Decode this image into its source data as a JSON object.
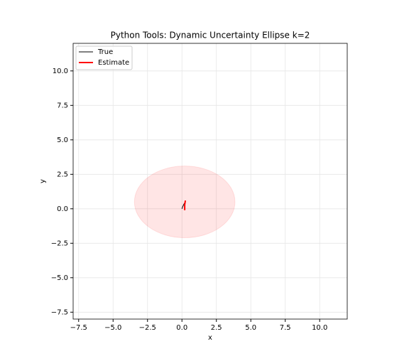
{
  "chart_data": {
    "type": "line",
    "title": "Python Tools: Dynamic Uncertainty Ellipse  k=2",
    "x_label": "x",
    "y_label": "y",
    "xlim": [
      -7.9,
      12.0
    ],
    "ylim": [
      -8.0,
      12.0
    ],
    "xticks": [
      {
        "value": -7.5,
        "label": "−7.5"
      },
      {
        "value": -5,
        "label": "−5.0"
      },
      {
        "value": -2.5,
        "label": "−2.5"
      },
      {
        "value": 0,
        "label": "0.0"
      },
      2.5,
      {
        "value": 5,
        "label": "5.0"
      },
      7.5,
      {
        "value": 10,
        "label": "10.0"
      }
    ],
    "yticks": [
      {
        "value": -7.5,
        "label": "−7.5"
      },
      {
        "value": -5,
        "label": "−5.0"
      },
      {
        "value": -2.5,
        "label": "−2.5"
      },
      {
        "value": 0,
        "label": "0.0"
      },
      2.5,
      {
        "value": 5,
        "label": "5.0"
      },
      7.5,
      {
        "value": 10,
        "label": "10.0"
      }
    ],
    "grid": true,
    "legend": "upper left",
    "series": [
      {
        "name": "True",
        "color": "#000000",
        "x": [
          0,
          0.05,
          0.15,
          0.25
        ],
        "values": [
          0,
          0.15,
          0.35,
          0.5
        ]
      },
      {
        "name": "Estimate",
        "color": "#ff0000",
        "x": [
          0.2,
          0.2,
          0.25
        ],
        "values": [
          -0.1,
          0.3,
          0.6
        ]
      }
    ],
    "ellipse": {
      "x": 0.2,
      "y": 0.5,
      "width": 7.3,
      "height": 5.2,
      "color": "#ff0000"
    }
  }
}
